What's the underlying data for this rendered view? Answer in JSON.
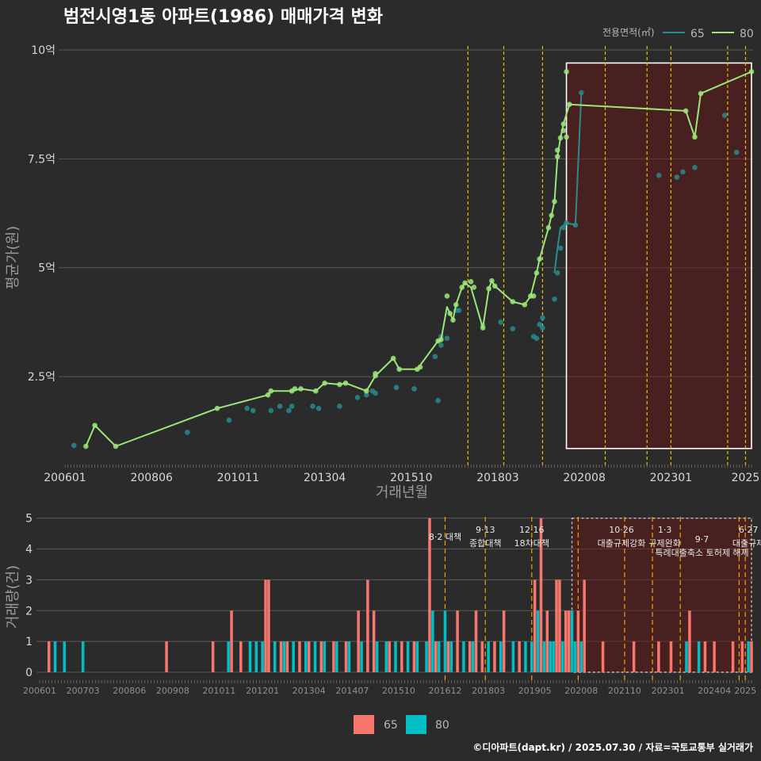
{
  "chart_data": [
    {
      "type": "line",
      "title": "범전시영1동 아파트(1986) 매매가격 변화",
      "xlabel": "거래년월",
      "ylabel": "평균가(원)",
      "legend_title": "전용면적(㎡)",
      "legend_position": "top-right",
      "x_tick_labels": [
        "200601",
        "200806",
        "201011",
        "201304",
        "201510",
        "201803",
        "202008",
        "202301",
        "2025"
      ],
      "x_tick_months": [
        0,
        29,
        58,
        87,
        116,
        145,
        174,
        203,
        228
      ],
      "y_tick_labels": [
        "2.5억",
        "5억",
        "7.5억",
        "10억"
      ],
      "y_tick_values": [
        2.5,
        5,
        7.5,
        10
      ],
      "xlim_months": [
        0,
        230
      ],
      "ylim": [
        0.5,
        10.2
      ],
      "y_unit": "억",
      "highlight_box_months": [
        168,
        230
      ],
      "highlight_box_y": [
        0.85,
        9.7
      ],
      "policy_line_months": [
        135,
        147,
        160,
        181,
        195,
        203,
        222,
        228
      ],
      "series": [
        {
          "name": "65",
          "color": "#2a8a8f",
          "points": [
            [
              3,
              0.92
            ],
            [
              41,
              1.22
            ],
            [
              55,
              1.5
            ],
            [
              61,
              1.77
            ],
            [
              63,
              1.72
            ],
            [
              69,
              1.72
            ],
            [
              72,
              1.82
            ],
            [
              75,
              1.72
            ],
            [
              76,
              1.82
            ],
            [
              83,
              1.82
            ],
            [
              85,
              1.77
            ],
            [
              92,
              1.82
            ],
            [
              98,
              2.02
            ],
            [
              101,
              2.08
            ],
            [
              103,
              2.17
            ],
            [
              104,
              2.12
            ],
            [
              111,
              2.25
            ],
            [
              117,
              2.22
            ],
            [
              124,
              2.96
            ],
            [
              125,
              1.95
            ],
            [
              126,
              3.22
            ],
            [
              126,
              3.42
            ],
            [
              128,
              3.38
            ],
            [
              131,
              4.02
            ],
            [
              132,
              4.02
            ],
            [
              140,
              3.68
            ],
            [
              146,
              3.75
            ],
            [
              150,
              3.6
            ],
            [
              157,
              3.42
            ],
            [
              158,
              3.38
            ],
            [
              159,
              3.7
            ],
            [
              160,
              3.62
            ],
            [
              160,
              3.85
            ],
            [
              164,
              4.28
            ],
            [
              165,
              4.88
            ],
            [
              166,
              5.45
            ],
            [
              167,
              5.92
            ],
            [
              168,
              6.03
            ],
            [
              171,
              5.98
            ],
            [
              173,
              9.02
            ],
            [
              199,
              7.12
            ],
            [
              205,
              7.08
            ],
            [
              207,
              7.2
            ],
            [
              211,
              7.3
            ],
            [
              221,
              8.5
            ],
            [
              225,
              7.65
            ]
          ],
          "line": [
            [
              164,
              4.88
            ],
            [
              165,
              5.45
            ],
            [
              166,
              5.92
            ],
            [
              168,
              6.03
            ],
            [
              171,
              5.98
            ],
            [
              173,
              9.02
            ]
          ]
        },
        {
          "name": "80",
          "color": "#9ce67a",
          "points": [
            [
              7,
              0.9
            ],
            [
              10,
              1.38
            ],
            [
              17,
              0.9
            ],
            [
              51,
              1.77
            ],
            [
              68,
              2.08
            ],
            [
              69,
              2.17
            ],
            [
              76,
              2.17
            ],
            [
              77,
              2.22
            ],
            [
              79,
              2.22
            ],
            [
              84,
              2.17
            ],
            [
              87,
              2.35
            ],
            [
              92,
              2.32
            ],
            [
              94,
              2.35
            ],
            [
              101,
              2.17
            ],
            [
              104,
              2.52
            ],
            [
              104,
              2.57
            ],
            [
              110,
              2.92
            ],
            [
              112,
              2.67
            ],
            [
              118,
              2.67
            ],
            [
              119,
              2.72
            ],
            [
              125,
              3.32
            ],
            [
              126,
              3.35
            ],
            [
              128,
              4.35
            ],
            [
              129,
              3.95
            ],
            [
              130,
              3.8
            ],
            [
              131,
              4.15
            ],
            [
              133,
              4.55
            ],
            [
              134,
              4.65
            ],
            [
              136,
              4.68
            ],
            [
              137,
              4.55
            ],
            [
              140,
              3.62
            ],
            [
              142,
              4.52
            ],
            [
              143,
              4.7
            ],
            [
              144,
              4.58
            ],
            [
              150,
              4.22
            ],
            [
              154,
              4.15
            ],
            [
              156,
              4.35
            ],
            [
              157,
              4.35
            ],
            [
              158,
              4.88
            ],
            [
              159,
              5.2
            ],
            [
              162,
              5.92
            ],
            [
              163,
              6.2
            ],
            [
              164,
              6.52
            ],
            [
              165,
              7.55
            ],
            [
              165,
              7.7
            ],
            [
              166,
              7.98
            ],
            [
              167,
              8.15
            ],
            [
              167,
              8.3
            ],
            [
              168,
              8.0
            ],
            [
              169,
              8.75
            ],
            [
              168,
              9.5
            ],
            [
              208,
              8.6
            ],
            [
              211,
              8.0
            ],
            [
              213,
              9.0
            ],
            [
              230,
              9.5
            ]
          ],
          "line": [
            [
              7,
              0.9
            ],
            [
              10,
              1.38
            ],
            [
              17,
              0.9
            ],
            [
              51,
              1.77
            ],
            [
              68,
              2.08
            ],
            [
              69,
              2.17
            ],
            [
              76,
              2.17
            ],
            [
              79,
              2.22
            ],
            [
              84,
              2.17
            ],
            [
              87,
              2.35
            ],
            [
              92,
              2.32
            ],
            [
              94,
              2.35
            ],
            [
              101,
              2.17
            ],
            [
              104,
              2.52
            ],
            [
              110,
              2.92
            ],
            [
              112,
              2.67
            ],
            [
              118,
              2.67
            ],
            [
              125,
              3.32
            ],
            [
              126,
              3.35
            ],
            [
              128,
              4.1
            ],
            [
              129,
              3.95
            ],
            [
              130,
              3.8
            ],
            [
              131,
              4.15
            ],
            [
              133,
              4.55
            ],
            [
              134,
              4.65
            ],
            [
              136,
              4.55
            ],
            [
              140,
              3.62
            ],
            [
              142,
              4.52
            ],
            [
              143,
              4.7
            ],
            [
              144,
              4.58
            ],
            [
              150,
              4.22
            ],
            [
              154,
              4.15
            ],
            [
              156,
              4.35
            ],
            [
              158,
              4.88
            ],
            [
              159,
              5.2
            ],
            [
              162,
              5.92
            ],
            [
              163,
              6.2
            ],
            [
              164,
              6.52
            ],
            [
              165,
              7.55
            ],
            [
              166,
              7.98
            ],
            [
              167,
              8.3
            ],
            [
              169,
              8.75
            ],
            [
              208,
              8.6
            ],
            [
              211,
              8.0
            ],
            [
              213,
              9.0
            ],
            [
              230,
              9.5
            ]
          ]
        }
      ]
    },
    {
      "type": "bar",
      "xlabel": "",
      "ylabel": "거래량(건)",
      "legend_position": "bottom",
      "x_tick_labels": [
        "200601",
        "200703",
        "200806",
        "200908",
        "201011",
        "201201",
        "201304",
        "201407",
        "201510",
        "201612",
        "201803",
        "201905",
        "202008",
        "202110",
        "202301",
        "202404",
        "2025"
      ],
      "x_tick_months": [
        0,
        14,
        29,
        43,
        58,
        72,
        87,
        101,
        116,
        131,
        145,
        160,
        175,
        189,
        203,
        218,
        228
      ],
      "y_tick_labels": [
        "0",
        "1",
        "2",
        "3",
        "4",
        "5"
      ],
      "y_tick_values": [
        0,
        1,
        2,
        3,
        4,
        5
      ],
      "xlim_months": [
        0,
        230
      ],
      "ylim": [
        0,
        5.3
      ],
      "highlight_box_months": [
        172,
        230
      ],
      "policy_line_months": [
        131,
        144,
        159,
        174,
        189,
        198,
        207,
        226,
        228
      ],
      "policy_labels": [
        {
          "month": 131,
          "lines": [
            "8·2 대책"
          ]
        },
        {
          "month": 144,
          "lines": [
            "9·13",
            "종합대책"
          ]
        },
        {
          "month": 159,
          "lines": [
            "12·16",
            "18차대책"
          ]
        },
        {
          "month": 188,
          "lines": [
            "10·26",
            "대출규제강화"
          ]
        },
        {
          "month": 202,
          "lines": [
            "1·3",
            "규제완화"
          ]
        },
        {
          "month": 214,
          "lines": [
            "9·7",
            "특례대출축소 토허제 해제"
          ]
        },
        {
          "month": 229,
          "lines": [
            "6·27",
            "대출규제"
          ]
        }
      ],
      "series": [
        {
          "name": "65",
          "color": "#f8766d",
          "bars": [
            [
              3,
              1
            ],
            [
              41,
              1
            ],
            [
              56,
              1
            ],
            [
              62,
              2
            ],
            [
              65,
              1
            ],
            [
              73,
              3
            ],
            [
              74,
              3
            ],
            [
              78,
              1
            ],
            [
              80,
              1
            ],
            [
              84,
              1
            ],
            [
              87,
              1
            ],
            [
              91,
              1
            ],
            [
              95,
              1
            ],
            [
              99,
              1
            ],
            [
              103,
              2
            ],
            [
              106,
              3
            ],
            [
              108,
              2
            ],
            [
              113,
              1
            ],
            [
              117,
              1
            ],
            [
              121,
              1
            ],
            [
              126,
              5
            ],
            [
              128,
              1
            ],
            [
              132,
              1
            ],
            [
              135,
              2
            ],
            [
              139,
              1
            ],
            [
              141,
              2
            ],
            [
              143,
              1
            ],
            [
              147,
              1
            ],
            [
              150,
              2
            ],
            [
              155,
              1
            ],
            [
              160,
              3
            ],
            [
              162,
              5
            ],
            [
              164,
              2
            ],
            [
              167,
              3
            ],
            [
              168,
              3
            ],
            [
              170,
              2
            ],
            [
              171,
              2
            ],
            [
              174,
              2
            ],
            [
              176,
              3
            ],
            [
              182,
              1
            ],
            [
              192,
              1
            ],
            [
              200,
              1
            ],
            [
              204,
              1
            ],
            [
              210,
              2
            ],
            [
              215,
              1
            ],
            [
              218,
              1
            ],
            [
              224,
              1
            ],
            [
              227,
              1
            ],
            [
              230,
              1
            ]
          ]
        },
        {
          "name": "80",
          "color": "#00bfc4",
          "bars": [
            [
              5,
              1
            ],
            [
              8,
              1
            ],
            [
              14,
              1
            ],
            [
              61,
              1
            ],
            [
              68,
              1
            ],
            [
              70,
              1
            ],
            [
              72,
              1
            ],
            [
              76,
              1
            ],
            [
              79,
              1
            ],
            [
              82,
              1
            ],
            [
              86,
              1
            ],
            [
              89,
              1
            ],
            [
              92,
              1
            ],
            [
              96,
              1
            ],
            [
              100,
              1
            ],
            [
              104,
              1
            ],
            [
              109,
              1
            ],
            [
              112,
              1
            ],
            [
              115,
              1
            ],
            [
              119,
              1
            ],
            [
              122,
              1
            ],
            [
              125,
              1
            ],
            [
              127,
              2
            ],
            [
              129,
              1
            ],
            [
              131,
              2
            ],
            [
              133,
              1
            ],
            [
              137,
              1
            ],
            [
              140,
              1
            ],
            [
              145,
              1
            ],
            [
              149,
              1
            ],
            [
              153,
              1
            ],
            [
              157,
              1
            ],
            [
              159,
              1
            ],
            [
              161,
              2
            ],
            [
              163,
              1
            ],
            [
              165,
              1
            ],
            [
              166,
              1
            ],
            [
              169,
              1
            ],
            [
              172,
              2
            ],
            [
              173,
              1
            ],
            [
              175,
              1
            ],
            [
              209,
              1
            ],
            [
              213,
              1
            ],
            [
              229,
              1
            ]
          ]
        }
      ]
    }
  ],
  "credit": "©디아파트(dapt.kr) / 2025.07.30 / 자료=국토교통부 실거래가"
}
